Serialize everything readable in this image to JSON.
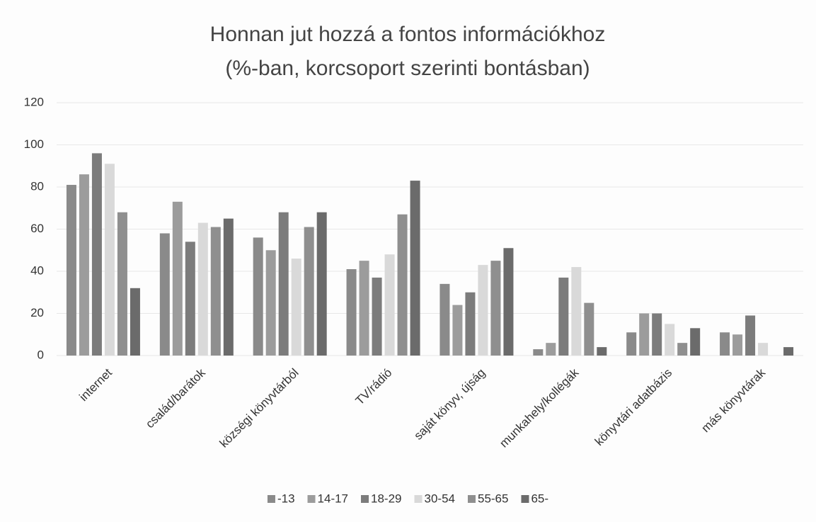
{
  "chart_data": {
    "type": "bar",
    "title": "Honnan jut hozzá a fontos információkhoz",
    "subtitle": "(%-ban, korcsoport szerinti bontásban)",
    "categories": [
      "internet",
      "család/barátok",
      "községi könyvtárból",
      "TV/rádió",
      "saját könyv, újság",
      "munkahely/kollégák",
      "könyvtári adatbázis",
      "más könyvtárak"
    ],
    "series": [
      {
        "name": "-13",
        "color": "#8a8a8a",
        "values": [
          81,
          58,
          56,
          41,
          34,
          3,
          11,
          11
        ]
      },
      {
        "name": "14-17",
        "color": "#9c9c9c",
        "values": [
          86,
          73,
          50,
          45,
          24,
          6,
          20,
          10
        ]
      },
      {
        "name": "18-29",
        "color": "#7c7c7c",
        "values": [
          96,
          54,
          68,
          37,
          30,
          37,
          20,
          19
        ]
      },
      {
        "name": "30-54",
        "color": "#d9d9d9",
        "values": [
          91,
          63,
          46,
          48,
          43,
          42,
          15,
          6
        ]
      },
      {
        "name": "55-65",
        "color": "#8f8f8f",
        "values": [
          68,
          61,
          61,
          67,
          45,
          25,
          6,
          0
        ]
      },
      {
        "name": "65-",
        "color": "#6b6b6b",
        "values": [
          32,
          65,
          68,
          83,
          51,
          4,
          13,
          4
        ]
      }
    ],
    "ylim": [
      0,
      120
    ],
    "yticks": [
      0,
      20,
      40,
      60,
      80,
      100,
      120
    ],
    "grid": true,
    "legend": "bottom"
  }
}
